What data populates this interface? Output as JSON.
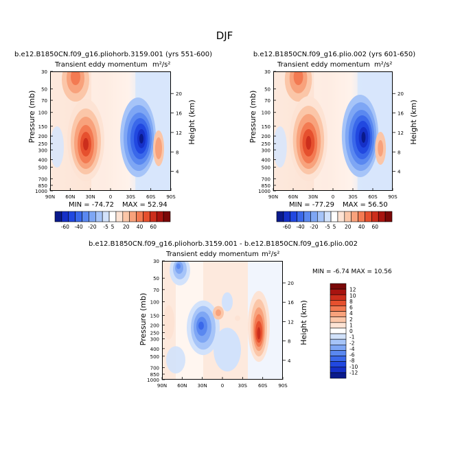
{
  "page_title": "DJF",
  "colors": {
    "blues": [
      "#0a1a8c",
      "#1530c8",
      "#2148e0",
      "#3a68ea",
      "#5a88f0",
      "#7ea6f4",
      "#a6c4f8",
      "#d2e2fb"
    ],
    "reds": [
      "#fde3d4",
      "#fbc6a8",
      "#f8a27c",
      "#f37a52",
      "#e6502e",
      "#cc2e1c",
      "#a81410",
      "#7a0808"
    ],
    "neutral": "#ffffff"
  },
  "chart_data": [
    {
      "id": "panel1",
      "type": "contour",
      "title": "b.e12.B1850CN.f09_g16.pliohorb.3159.001 (yrs 551-600)",
      "variable": "Transient eddy momentum",
      "units": "m²/s²",
      "ylabel": "Pressure (mb)",
      "y2label": "Height (km)",
      "xticks": [
        "90N",
        "60N",
        "30N",
        "0",
        "30S",
        "60S",
        "90S"
      ],
      "yticks": [
        "30",
        "50",
        "70",
        "100",
        "150",
        "200",
        "250",
        "300",
        "400",
        "500",
        "700",
        "850",
        "1000"
      ],
      "y2ticks": [
        "20",
        "16",
        "12",
        "8",
        "4"
      ],
      "min_text": "MIN = -74.72",
      "max_text": "MAX = 52.94",
      "min": -74.72,
      "max": 52.94
    },
    {
      "id": "panel2",
      "type": "contour",
      "title": "b.e12.B1850CN.f09_g16.plio.002 (yrs 601-650)",
      "variable": "Transient eddy momentum",
      "units": "m²/s²",
      "ylabel": "Pressure (mb)",
      "y2label": "Height (km)",
      "xticks": [
        "90N",
        "60N",
        "30N",
        "0",
        "30S",
        "60S",
        "90S"
      ],
      "yticks": [
        "30",
        "50",
        "70",
        "100",
        "150",
        "200",
        "250",
        "300",
        "400",
        "500",
        "700",
        "850",
        "1000"
      ],
      "y2ticks": [
        "20",
        "16",
        "12",
        "8",
        "4"
      ],
      "min_text": "MIN = -77.29",
      "max_text": "MAX = 56.50",
      "min": -77.29,
      "max": 56.5
    },
    {
      "id": "panel3",
      "type": "contour",
      "title": "b.e12.B1850CN.f09_g16.pliohorb.3159.001 - b.e12.B1850CN.f09_g16.plio.002",
      "variable": "Transient eddy momentum",
      "units": "m²/s²",
      "ylabel": "Pressure (mb)",
      "y2label": "Height (km)",
      "xticks": [
        "90N",
        "60N",
        "30N",
        "0",
        "30S",
        "60S",
        "90S"
      ],
      "yticks": [
        "30",
        "50",
        "70",
        "100",
        "150",
        "200",
        "250",
        "300",
        "400",
        "500",
        "700",
        "850",
        "1000"
      ],
      "y2ticks": [
        "20",
        "16",
        "12",
        "8",
        "4"
      ],
      "minmax_text": "MIN = -6.74  MAX = 10.56",
      "min": -6.74,
      "max": 10.56
    }
  ],
  "colorbar_top": {
    "labels": [
      "-60",
      "-40",
      "-20",
      "-5",
      "5",
      "20",
      "40",
      "60"
    ]
  },
  "colorbar_diff": {
    "labels": [
      "12",
      "10",
      "8",
      "6",
      "4",
      "2",
      "1",
      "0",
      "-1",
      "-2",
      "-4",
      "-6",
      "-8",
      "-10",
      "-12"
    ]
  }
}
